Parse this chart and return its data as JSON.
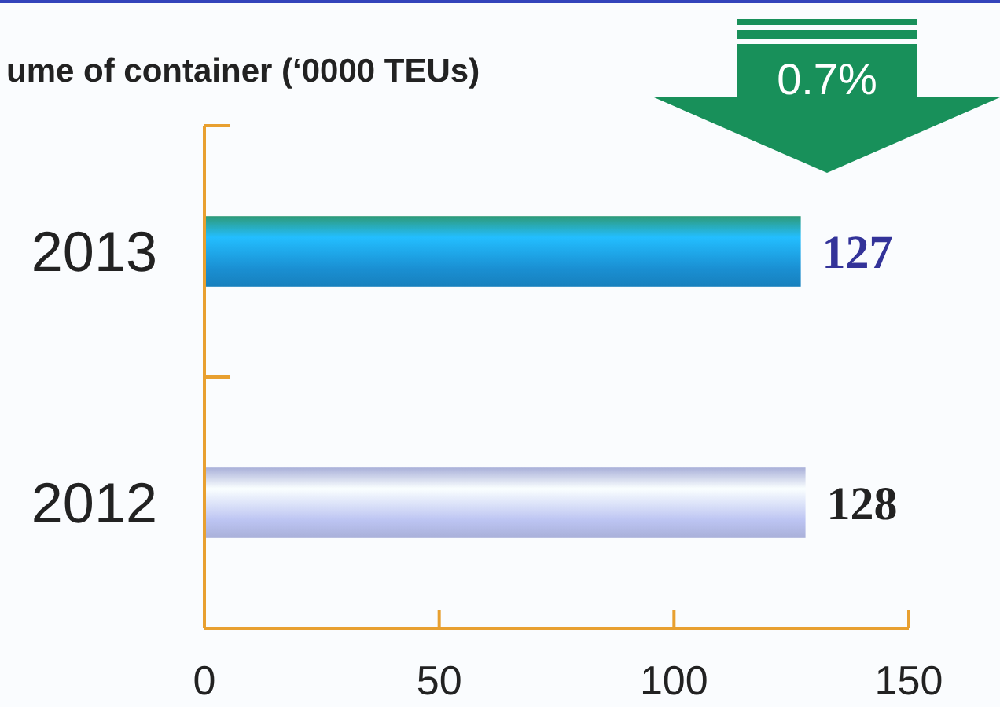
{
  "chart_data": {
    "type": "bar",
    "orientation": "horizontal",
    "title": "ume of container  (‘0000 TEUs)",
    "categories": [
      "2013",
      "2012"
    ],
    "values": [
      127,
      128
    ],
    "colors": [
      "#1a8fd2",
      "#bcc4f2"
    ],
    "xlim": [
      0,
      150
    ],
    "xticks": [
      0,
      50,
      100,
      150
    ],
    "data_labels": true,
    "annotations": [
      "0.7%"
    ]
  }
}
